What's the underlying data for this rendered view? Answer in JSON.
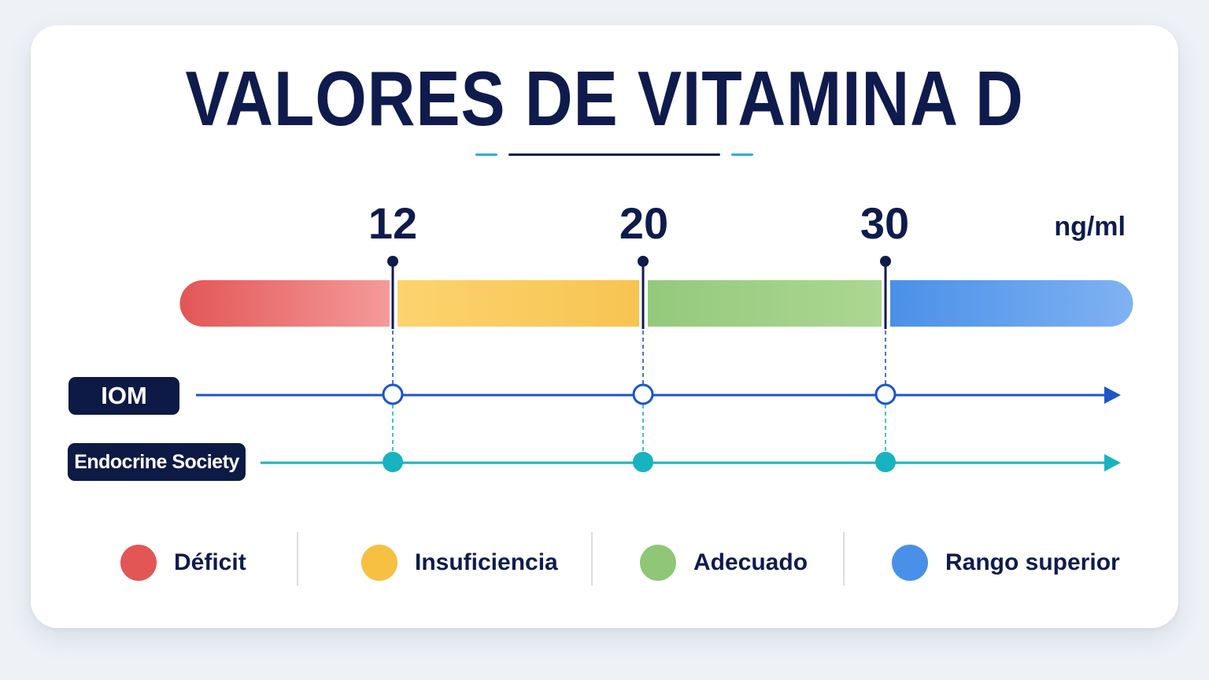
{
  "title": "VALORES DE VITAMINA D",
  "scale": {
    "unit": "ng/ml",
    "thresholds": [
      {
        "value": "12"
      },
      {
        "value": "20"
      },
      {
        "value": "30"
      }
    ]
  },
  "categories": [
    {
      "label": "Déficit",
      "color": "#e25656",
      "color_light": "#f59a9a"
    },
    {
      "label": "Insuficiencia",
      "color": "#f6c043",
      "color_light": "#fcd36e"
    },
    {
      "label": "Adecuado",
      "color": "#8fc776",
      "color_light": "#a9d48e"
    },
    {
      "label": "Rango superior",
      "color": "#4a90e8",
      "color_light": "#7fb2f2"
    }
  ],
  "guidelines": [
    {
      "label": "IOM",
      "color": "#1d55c9",
      "marker": "hollow"
    },
    {
      "label": "Endocrine Society",
      "color": "#17b3c0",
      "marker": "filled"
    }
  ],
  "colors": {
    "navy": "#0f1b4c",
    "accent_teal": "#2bb0cf"
  }
}
